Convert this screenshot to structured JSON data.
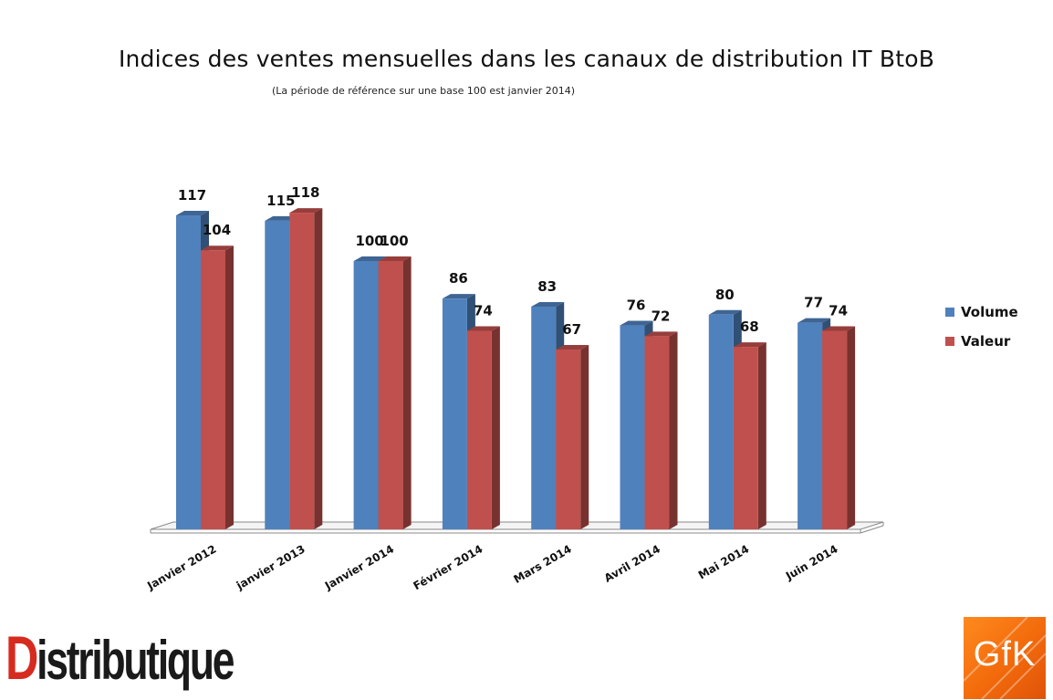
{
  "chart_data": {
    "type": "bar",
    "title": "Indices des ventes mensuelles dans les canaux de distribution IT BtoB",
    "subtitle": "(La période de référence sur une base 100 est janvier 2014)",
    "categories": [
      "Janvier 2012",
      "janvier 2013",
      "Janvier 2014",
      "Février 2014",
      "Mars 2014",
      "Avril 2014",
      "Mai 2014",
      "Juin 2014"
    ],
    "series": [
      {
        "name": "Volume",
        "values": [
          117,
          115,
          100,
          86,
          83,
          76,
          80,
          77
        ],
        "color": "#4f81bd"
      },
      {
        "name": "Valeur",
        "values": [
          104,
          118,
          100,
          74,
          67,
          72,
          68,
          74
        ],
        "color": "#c0504d"
      }
    ],
    "ylim": [
      0,
      118
    ],
    "grid": false,
    "legend_position": "right",
    "style": "3d-column"
  },
  "logos": {
    "left": {
      "first": "D",
      "rest": "istributique"
    },
    "right": "GfK"
  }
}
